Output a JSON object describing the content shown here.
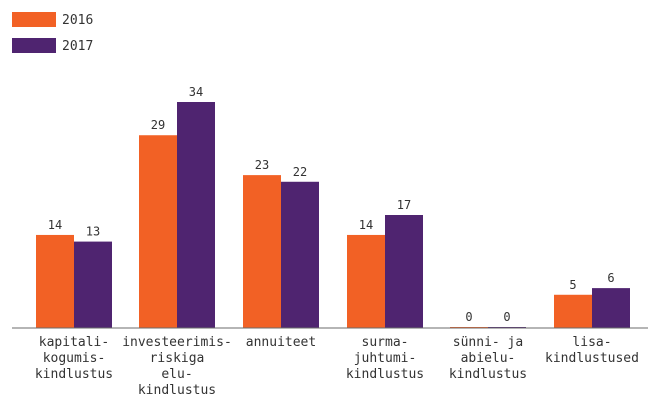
{
  "chart_data": {
    "type": "bar",
    "categories": [
      [
        "kapitali-",
        "kogumis-",
        "kindlustus"
      ],
      [
        "investeerimis-",
        "riskiga",
        "elu-",
        "kindlustus"
      ],
      [
        "annuiteet"
      ],
      [
        "surma-",
        "juhtumi-",
        "kindlustus"
      ],
      [
        "sünni-  ja",
        "abielu-",
        "kindlustus"
      ],
      [
        "lisa-",
        "kindlustused"
      ]
    ],
    "series": [
      {
        "name": "2016",
        "values": [
          14,
          29,
          23,
          14,
          0,
          5
        ],
        "color": "#F26125"
      },
      {
        "name": "2017",
        "values": [
          13,
          34,
          22,
          17,
          0,
          6
        ],
        "color": "#4F2470"
      }
    ],
    "ylim": [
      0,
      34
    ],
    "grid": false,
    "legend_position": "top-left",
    "title": "",
    "xlabel": "",
    "ylabel": ""
  }
}
